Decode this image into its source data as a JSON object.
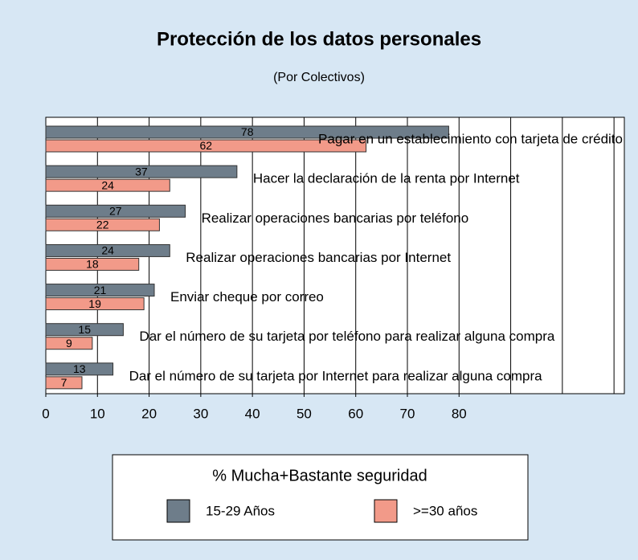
{
  "chart_data": {
    "type": "bar",
    "orientation": "horizontal",
    "title": "Protección de los datos personales",
    "subtitle": "(Por Colectivos)",
    "categories": [
      "Pagar en un establecimiento con tarjeta de crédito",
      "Hacer la declaración de la renta por Internet",
      "Realizar operaciones bancarias por teléfono",
      "Realizar operaciones bancarias por Internet",
      "Enviar cheque por correo",
      "Dar el número de su tarjeta por teléfono para realizar alguna compra",
      "Dar el número de su tarjeta por Internet para realizar alguna compra"
    ],
    "series": [
      {
        "name": "15-29 Años",
        "color": "#6e7d8a",
        "values": [
          78,
          37,
          27,
          24,
          21,
          15,
          13
        ]
      },
      {
        "name": ">=30 años",
        "color": "#f29a89",
        "values": [
          62,
          24,
          22,
          18,
          19,
          9,
          7
        ]
      }
    ],
    "xlim": [
      0,
      112
    ],
    "xticks": [
      0,
      10,
      20,
      30,
      40,
      50,
      60,
      70,
      80
    ],
    "xgrid": [
      10,
      20,
      30,
      40,
      50,
      60,
      70,
      80,
      90,
      100,
      110
    ],
    "legend_title": "% Mucha+Bastante seguridad",
    "legend": "bottom"
  }
}
